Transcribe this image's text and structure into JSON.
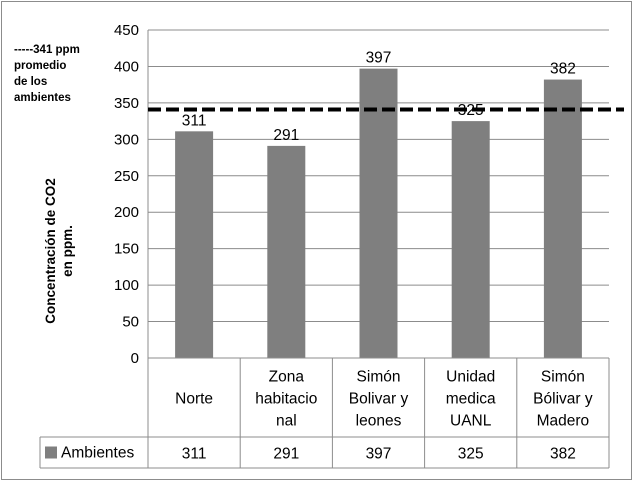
{
  "chart_data": {
    "type": "bar",
    "categories": [
      "Norte",
      "Zona habitacional",
      "Simón Bolivar y leones",
      "Unidad medica UANL",
      "Simón Bólivar y Madero"
    ],
    "category_label_lines": [
      [
        "Norte"
      ],
      [
        "Zona",
        "habitacio",
        "nal"
      ],
      [
        "Simón",
        "Bolivar y",
        "leones"
      ],
      [
        "Unidad",
        "medica",
        "UANL"
      ],
      [
        "Simón",
        "Bólivar y",
        "Madero"
      ]
    ],
    "series": [
      {
        "name": "Ambientes",
        "values": [
          311,
          291,
          397,
          325,
          382
        ],
        "color": "#7f7f7f"
      }
    ],
    "ylabel_lines": [
      "Concentración de CO2",
      "en ppm."
    ],
    "ylim": [
      0,
      450
    ],
    "yticks": [
      0,
      50,
      100,
      150,
      200,
      250,
      300,
      350,
      400,
      450
    ],
    "reference_line": {
      "value": 341,
      "label": "-----341 ppm\npromedio\nde los\nambientes"
    },
    "grid": true,
    "legend_placement": "data-table",
    "data_table": true
  }
}
